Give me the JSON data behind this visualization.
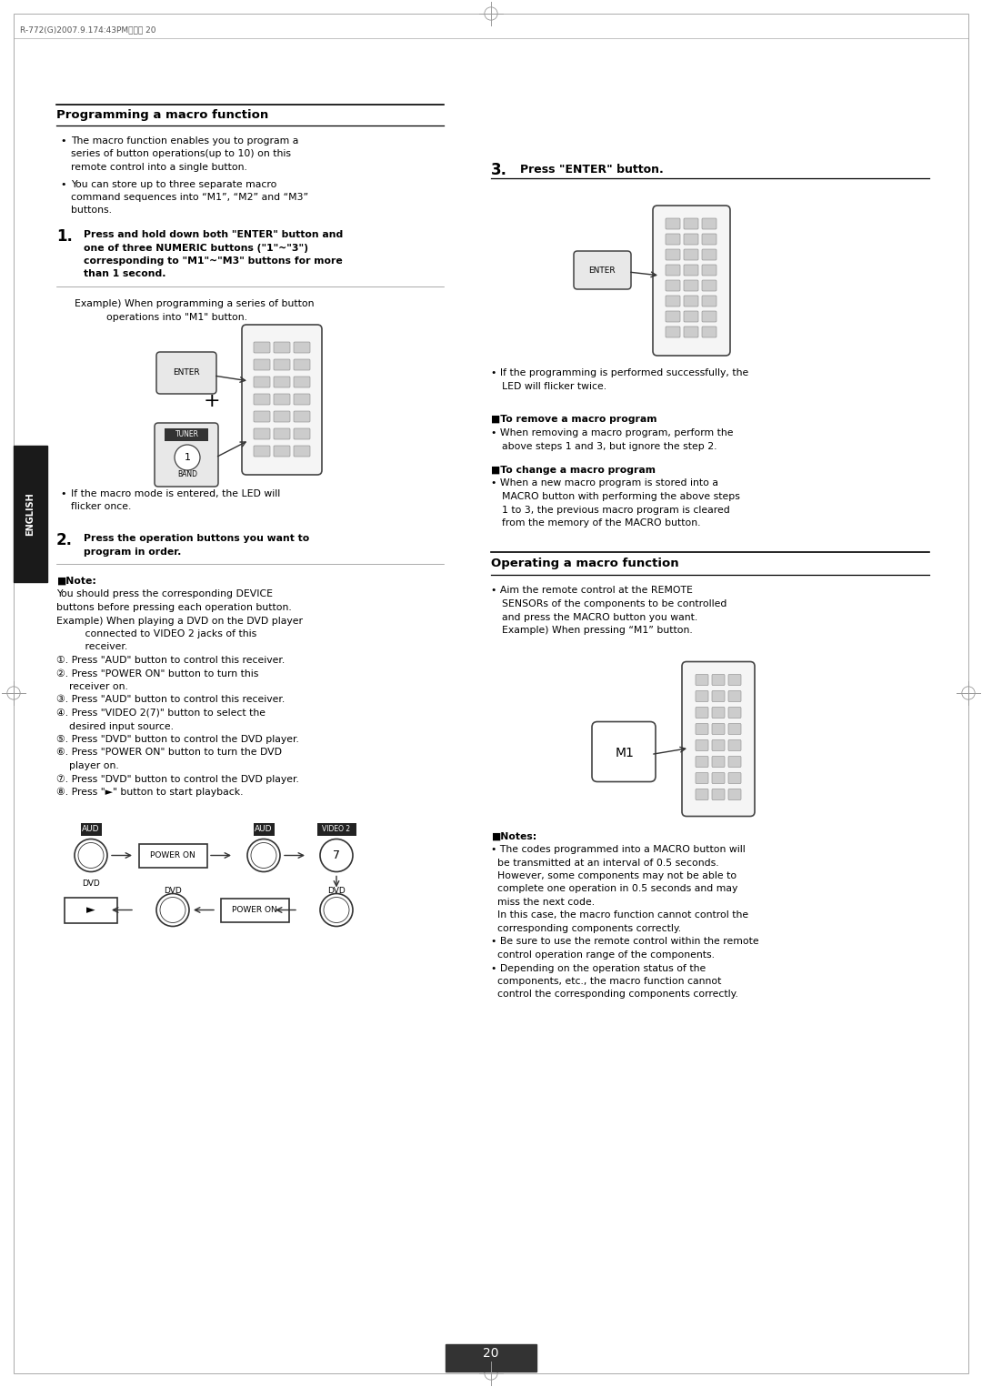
{
  "page_num": "20",
  "header_text": "R-772(G)2007.9.174:43PM페이지 20",
  "bg_color": "#ffffff",
  "section1_title": "Programming a macro function",
  "section2_title": "Operating a macro function",
  "english_label": "ENGLISH"
}
